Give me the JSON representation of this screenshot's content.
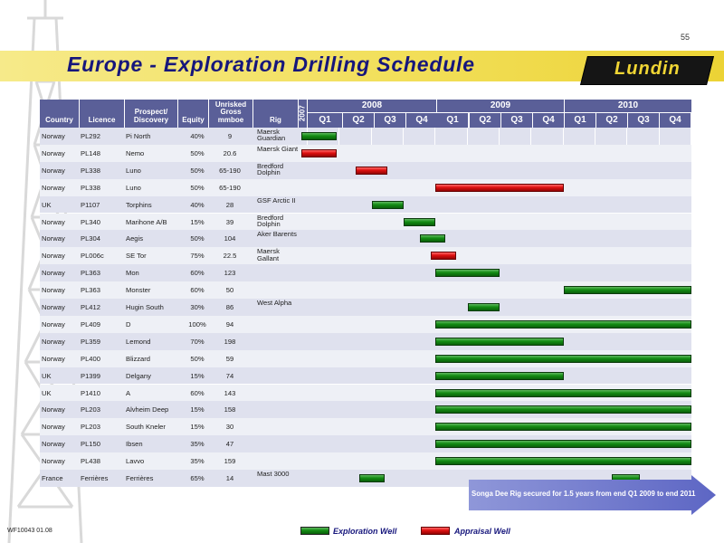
{
  "page_number": "55",
  "title": "Europe - Exploration Drilling Schedule",
  "logo_text": "Lundin",
  "footer_id": "WF10043 01.08",
  "table_headers": {
    "country": "Country",
    "licence": "Licence",
    "prospect": "Prospect/ Discovery",
    "equity": "Equity",
    "gross": "Unrisked Gross mmboe",
    "rig": "Rig",
    "year0": "2007"
  },
  "years": [
    "2008",
    "2009",
    "2010"
  ],
  "quarters": [
    "Q1",
    "Q2",
    "Q3",
    "Q4",
    "Q1",
    "Q2",
    "Q3",
    "Q4",
    "Q1",
    "Q2",
    "Q3",
    "Q4"
  ],
  "legend": {
    "exploration": "Exploration Well",
    "appraisal": "Appraisal Well"
  },
  "colors": {
    "header": "#5a5f98",
    "exploration": "#138c13",
    "appraisal": "#dd0f0f",
    "title": "#16167c",
    "band": "#f2df5a",
    "row_band": "#dfe1ee"
  },
  "callout": "Songa Dee Rig secured for 1.5 years from end Q1 2009 to end 2011",
  "chart_data": {
    "type": "table",
    "time_axis": "quarters from start of Q1 2008 (0) to end of Q4 2010 (12)",
    "rows": [
      {
        "country": "Norway",
        "licence": "PL292",
        "prospect": "Pi North",
        "equity": "40%",
        "gross": "9",
        "rig": "Maersk Guardian",
        "bars": [
          {
            "type": "exploration",
            "start": -0.2,
            "end": 0.9
          }
        ]
      },
      {
        "country": "Norway",
        "licence": "PL148",
        "prospect": "Nemo",
        "equity": "50%",
        "gross": "20.6",
        "rig": "Maersk Giant",
        "bars": [
          {
            "type": "appraisal",
            "start": -0.2,
            "end": 0.9
          }
        ]
      },
      {
        "country": "Norway",
        "licence": "PL338",
        "prospect": "Luno",
        "equity": "50%",
        "gross": "65-190",
        "rig": "Bredford Dolphin",
        "bars": [
          {
            "type": "appraisal",
            "start": 1.5,
            "end": 2.5
          }
        ]
      },
      {
        "country": "Norway",
        "licence": "PL338",
        "prospect": "Luno",
        "equity": "50%",
        "gross": "65-190",
        "rig": "",
        "bars": [
          {
            "type": "appraisal",
            "start": 4.0,
            "end": 8.0
          }
        ]
      },
      {
        "country": "UK",
        "licence": "P1107",
        "prospect": "Torphins",
        "equity": "40%",
        "gross": "28",
        "rig": "GSF Arctic II",
        "bars": [
          {
            "type": "exploration",
            "start": 2.0,
            "end": 3.0
          }
        ]
      },
      {
        "country": "Norway",
        "licence": "PL340",
        "prospect": "Marihone A/B",
        "equity": "15%",
        "gross": "39",
        "rig": "Bredford Dolphin",
        "bars": [
          {
            "type": "exploration",
            "start": 3.0,
            "end": 4.0
          }
        ]
      },
      {
        "country": "Norway",
        "licence": "PL304",
        "prospect": "Aegis",
        "equity": "50%",
        "gross": "104",
        "rig": "Aker Barents",
        "bars": [
          {
            "type": "exploration",
            "start": 3.5,
            "end": 4.3
          }
        ]
      },
      {
        "country": "Norway",
        "licence": "PL006c",
        "prospect": "SE Tor",
        "equity": "75%",
        "gross": "22.5",
        "rig": "Maersk Gallant",
        "bars": [
          {
            "type": "appraisal",
            "start": 3.85,
            "end": 4.65
          }
        ]
      },
      {
        "country": "Norway",
        "licence": "PL363",
        "prospect": "Mon",
        "equity": "60%",
        "gross": "123",
        "rig": "",
        "bars": [
          {
            "type": "exploration",
            "start": 4.0,
            "end": 6.0
          }
        ]
      },
      {
        "country": "Norway",
        "licence": "PL363",
        "prospect": "Monster",
        "equity": "60%",
        "gross": "50",
        "rig": "",
        "bars": [
          {
            "type": "exploration",
            "start": 8.0,
            "end": 12.0
          }
        ]
      },
      {
        "country": "Norway",
        "licence": "PL412",
        "prospect": "Hugin South",
        "equity": "30%",
        "gross": "86",
        "rig": "West Alpha",
        "bars": [
          {
            "type": "exploration",
            "start": 5.0,
            "end": 6.0
          }
        ]
      },
      {
        "country": "Norway",
        "licence": "PL409",
        "prospect": "D",
        "equity": "100%",
        "gross": "94",
        "rig": "",
        "bars": [
          {
            "type": "exploration",
            "start": 4.0,
            "end": 12.0
          }
        ]
      },
      {
        "country": "Norway",
        "licence": "PL359",
        "prospect": "Lemond",
        "equity": "70%",
        "gross": "198",
        "rig": "",
        "bars": [
          {
            "type": "exploration",
            "start": 4.0,
            "end": 8.0
          }
        ]
      },
      {
        "country": "Norway",
        "licence": "PL400",
        "prospect": "Blizzard",
        "equity": "50%",
        "gross": "59",
        "rig": "",
        "bars": [
          {
            "type": "exploration",
            "start": 4.0,
            "end": 12.0
          }
        ]
      },
      {
        "country": "UK",
        "licence": "P1399",
        "prospect": "Delgany",
        "equity": "15%",
        "gross": "74",
        "rig": "",
        "bars": [
          {
            "type": "exploration",
            "start": 4.0,
            "end": 8.0
          }
        ]
      },
      {
        "country": "UK",
        "licence": "P1410",
        "prospect": "A",
        "equity": "60%",
        "gross": "143",
        "rig": "",
        "bars": [
          {
            "type": "exploration",
            "start": 4.0,
            "end": 12.0
          }
        ]
      },
      {
        "country": "Norway",
        "licence": "PL203",
        "prospect": "Alvheim Deep",
        "equity": "15%",
        "gross": "158",
        "rig": "",
        "bars": [
          {
            "type": "exploration",
            "start": 4.0,
            "end": 12.0
          }
        ]
      },
      {
        "country": "Norway",
        "licence": "PL203",
        "prospect": "South Kneler",
        "equity": "15%",
        "gross": "30",
        "rig": "",
        "bars": [
          {
            "type": "exploration",
            "start": 4.0,
            "end": 12.0
          }
        ]
      },
      {
        "country": "Norway",
        "licence": "PL150",
        "prospect": "Ibsen",
        "equity": "35%",
        "gross": "47",
        "rig": "",
        "bars": [
          {
            "type": "exploration",
            "start": 4.0,
            "end": 12.0
          }
        ]
      },
      {
        "country": "Norway",
        "licence": "PL438",
        "prospect": "Lavvo",
        "equity": "35%",
        "gross": "159",
        "rig": "",
        "bars": [
          {
            "type": "exploration",
            "start": 4.0,
            "end": 12.0
          }
        ]
      },
      {
        "country": "France",
        "licence": "Ferrières",
        "prospect": "Ferrières",
        "equity": "65%",
        "gross": "14",
        "rig": "Mast 3000",
        "bars": [
          {
            "type": "exploration",
            "start": 1.6,
            "end": 2.4
          },
          {
            "type": "exploration",
            "start": 9.5,
            "end": 10.4
          }
        ]
      }
    ]
  }
}
